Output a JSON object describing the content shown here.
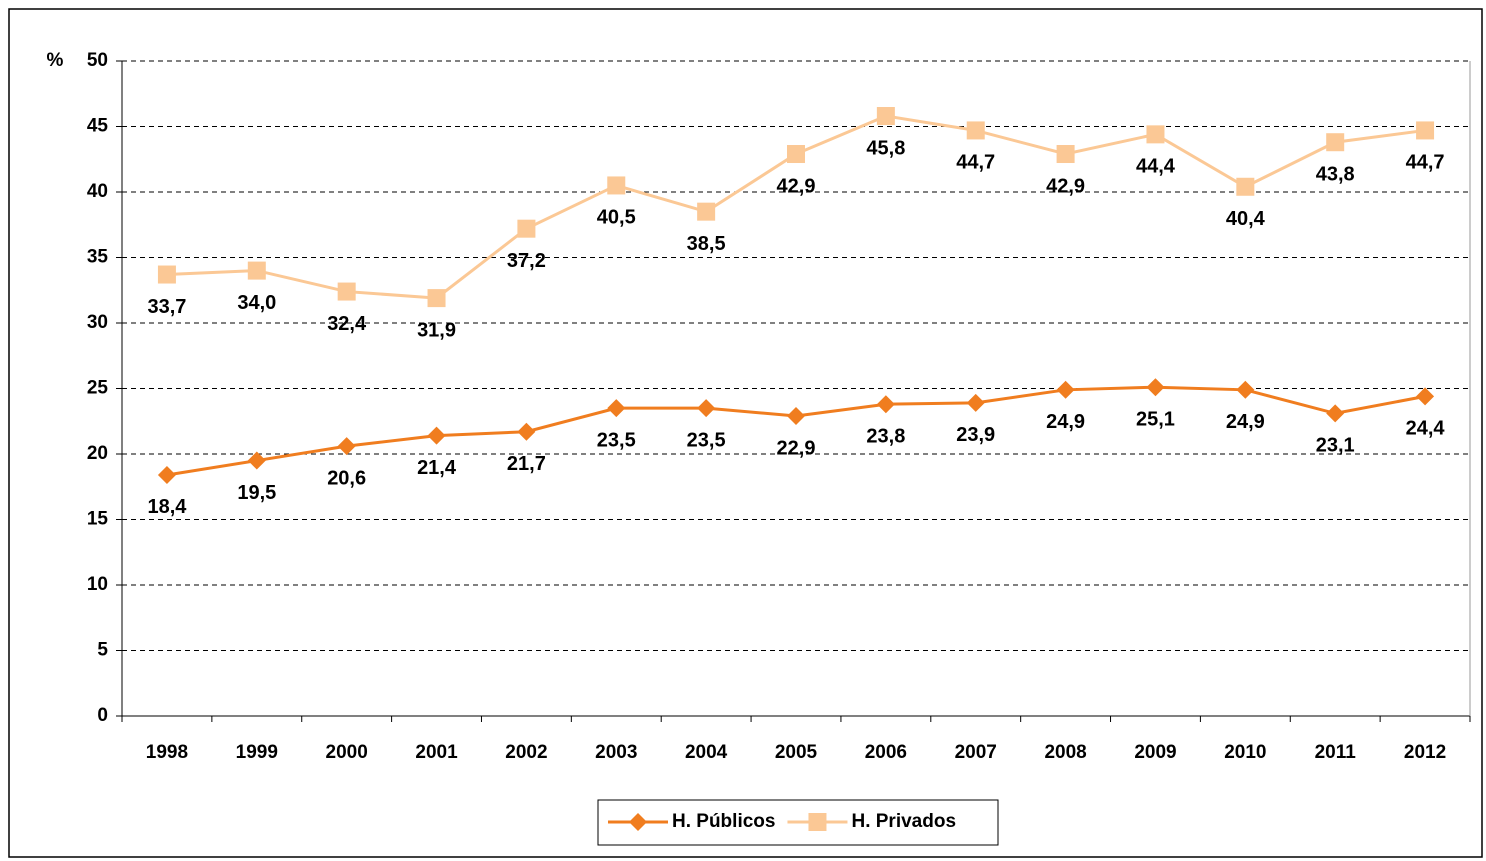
{
  "chart_data": {
    "type": "line",
    "y_label": "%",
    "categories": [
      "1998",
      "1999",
      "2000",
      "2001",
      "2002",
      "2003",
      "2004",
      "2005",
      "2006",
      "2007",
      "2008",
      "2009",
      "2010",
      "2011",
      "2012"
    ],
    "series": [
      {
        "name": "H. Públicos",
        "color": "#f07d1f",
        "marker": "diamond",
        "values": [
          18.4,
          19.5,
          20.6,
          21.4,
          21.7,
          23.5,
          23.5,
          22.9,
          23.8,
          23.9,
          24.9,
          25.1,
          24.9,
          23.1,
          24.4
        ],
        "value_labels": [
          "18,4",
          "19,5",
          "20,6",
          "21,4",
          "21,7",
          "23,5",
          "23,5",
          "22,9",
          "23,8",
          "23,9",
          "24,9",
          "25,1",
          "24,9",
          "23,1",
          "24,4"
        ]
      },
      {
        "name": "H. Privados",
        "color": "#fbc895",
        "marker": "square",
        "values": [
          33.7,
          34.0,
          32.4,
          31.9,
          37.2,
          40.5,
          38.5,
          42.9,
          45.8,
          44.7,
          42.9,
          44.4,
          40.4,
          43.8,
          44.7
        ],
        "value_labels": [
          "33,7",
          "34,0",
          "32,4",
          "31,9",
          "37,2",
          "40,5",
          "38,5",
          "42,9",
          "45,8",
          "44,7",
          "42,9",
          "44,4",
          "40,4",
          "43,8",
          "44,7"
        ]
      }
    ],
    "ylim": [
      0,
      50
    ],
    "yticks": [
      0,
      5,
      10,
      15,
      20,
      25,
      30,
      35,
      40,
      45,
      50
    ],
    "grid": true,
    "legend": "bottom"
  }
}
